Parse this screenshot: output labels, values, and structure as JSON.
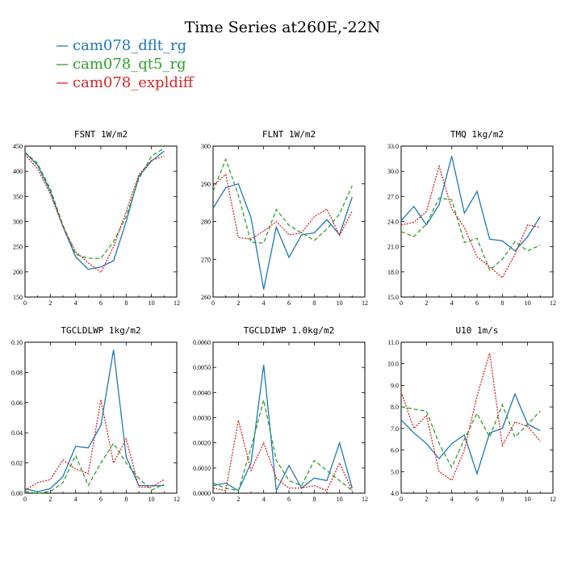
{
  "title": "Time Series at260E,-22N",
  "legend": [
    {
      "label": "cam078_dflt_rg",
      "color": "#1f77b4",
      "dash": "solid"
    },
    {
      "label": "cam078_qt5_rg",
      "color": "#2ca02c",
      "dash": "dashed"
    },
    {
      "label": "cam078_expldiff",
      "color": "#d62728",
      "dash": "dotted"
    }
  ],
  "chart_data": [
    {
      "type": "line",
      "title": "FSNT   1W/m2",
      "xlim": [
        0,
        12
      ],
      "xticks": [
        "0",
        "2",
        "4",
        "6",
        "8",
        "10",
        "12"
      ],
      "ylim": [
        150,
        450
      ],
      "yticks": [
        "150",
        "200",
        "250",
        "300",
        "350",
        "400",
        "450"
      ],
      "x": [
        0,
        1,
        2,
        3,
        4,
        5,
        6,
        7,
        8,
        9,
        10,
        11
      ],
      "series": [
        {
          "name": "cam078_dflt_rg",
          "values": [
            437,
            412,
            360,
            290,
            230,
            205,
            210,
            222,
            300,
            390,
            420,
            440
          ]
        },
        {
          "name": "cam078_qt5_rg",
          "values": [
            438,
            415,
            365,
            293,
            235,
            227,
            227,
            260,
            310,
            385,
            430,
            446
          ]
        },
        {
          "name": "cam078_expldiff",
          "values": [
            433,
            405,
            355,
            290,
            240,
            218,
            199,
            250,
            320,
            393,
            422,
            430
          ]
        }
      ]
    },
    {
      "type": "line",
      "title": "FLNT   1W/m2",
      "xlim": [
        0,
        12
      ],
      "xticks": [
        "0",
        "2",
        "4",
        "6",
        "8",
        "10",
        "12"
      ],
      "ylim": [
        260,
        300
      ],
      "yticks": [
        "260",
        "270",
        "280",
        "290",
        "300"
      ],
      "x": [
        0,
        1,
        2,
        3,
        4,
        5,
        6,
        7,
        8,
        9,
        10,
        11
      ],
      "series": [
        {
          "name": "cam078_dflt_rg",
          "values": [
            283.5,
            289,
            290,
            281,
            262,
            278.5,
            270.5,
            276.5,
            277,
            280.5,
            276.5,
            286.5
          ]
        },
        {
          "name": "cam078_qt5_rg",
          "values": [
            288,
            296.5,
            287,
            274.5,
            274.3,
            283.2,
            279,
            277,
            275,
            278,
            282,
            289.5
          ]
        },
        {
          "name": "cam078_expldiff",
          "values": [
            289.5,
            292.5,
            275.8,
            275.3,
            277.5,
            280,
            276.5,
            277,
            281.3,
            283.3,
            276.3,
            282.8
          ]
        }
      ]
    },
    {
      "type": "line",
      "title": "TMQ   1kg/m2",
      "xlim": [
        0,
        12
      ],
      "xticks": [
        "0",
        "2",
        "4",
        "6",
        "8",
        "10",
        "12"
      ],
      "ylim": [
        15.0,
        33.0
      ],
      "yticks": [
        "15.0",
        "18.0",
        "21.0",
        "24.0",
        "27.0",
        "30.0",
        "33.0"
      ],
      "x": [
        0,
        1,
        2,
        3,
        4,
        5,
        6,
        7,
        8,
        9,
        10,
        11
      ],
      "series": [
        {
          "name": "cam078_dflt_rg",
          "values": [
            24.1,
            25.8,
            23.6,
            26.0,
            31.8,
            25.0,
            27.6,
            21.9,
            21.7,
            20.5,
            22.2,
            24.6
          ]
        },
        {
          "name": "cam078_qt5_rg",
          "values": [
            22.8,
            22.2,
            23.7,
            26.8,
            26.6,
            21.5,
            22.0,
            18.2,
            19.5,
            21.6,
            20.5,
            21.2
          ]
        },
        {
          "name": "cam078_expldiff",
          "values": [
            23.6,
            23.9,
            25.2,
            30.6,
            25.5,
            23.3,
            19.8,
            18.6,
            17.3,
            20.1,
            23.6,
            23.3
          ]
        }
      ]
    },
    {
      "type": "line",
      "title": "TGCLDLWP   1kg/m2",
      "xlim": [
        0,
        12
      ],
      "xticks": [
        "0",
        "2",
        "4",
        "6",
        "8",
        "10",
        "12"
      ],
      "ylim": [
        0.0,
        0.1
      ],
      "yticks": [
        "0.00",
        "0.02",
        "0.04",
        "0.06",
        "0.08",
        "0.10"
      ],
      "x": [
        0,
        1,
        2,
        3,
        4,
        5,
        6,
        7,
        8,
        9,
        10,
        11
      ],
      "series": [
        {
          "name": "cam078_dflt_rg",
          "values": [
            0.003,
            0.001,
            0.003,
            0.011,
            0.031,
            0.03,
            0.045,
            0.095,
            0.024,
            0.005,
            0.005,
            0.005
          ]
        },
        {
          "name": "cam078_qt5_rg",
          "values": [
            0.001,
            0.0,
            0.001,
            0.007,
            0.025,
            0.005,
            0.02,
            0.033,
            0.02,
            0.01,
            0.002,
            0.006
          ]
        },
        {
          "name": "cam078_expldiff",
          "values": [
            0.002,
            0.007,
            0.009,
            0.022,
            0.016,
            0.013,
            0.062,
            0.02,
            0.036,
            0.004,
            0.004,
            0.009
          ]
        }
      ]
    },
    {
      "type": "line",
      "title": "TGCLDIWP   1.0kg/m2",
      "xlim": [
        0,
        12
      ],
      "xticks": [
        "0",
        "2",
        "4",
        "6",
        "8",
        "10",
        "12"
      ],
      "ylim": [
        0.0,
        0.006
      ],
      "yticks": [
        "0.0000",
        "0.0010",
        "0.0020",
        "0.0030",
        "0.0040",
        "0.0050",
        "0.0060"
      ],
      "x": [
        0,
        1,
        2,
        3,
        4,
        5,
        6,
        7,
        8,
        9,
        10,
        11
      ],
      "series": [
        {
          "name": "cam078_dflt_rg",
          "values": [
            0.0003,
            0.0004,
            0.0001,
            0.0012,
            0.0051,
            0.0001,
            0.0011,
            0.0002,
            0.0006,
            0.0005,
            0.002,
            0.0002
          ]
        },
        {
          "name": "cam078_qt5_rg",
          "values": [
            0.0004,
            0.0002,
            0.0001,
            0.0018,
            0.0037,
            0.0013,
            0.0005,
            0.0003,
            0.0013,
            0.0009,
            0.0005,
            0.0001
          ]
        },
        {
          "name": "cam078_expldiff",
          "values": [
            0.0002,
            0.0001,
            0.0029,
            0.0009,
            0.002,
            0.0006,
            0.0002,
            0.0002,
            0.0003,
            0.0001,
            0.0012,
            0.0001
          ]
        }
      ]
    },
    {
      "type": "line",
      "title": "U10   1m/s",
      "xlim": [
        0,
        12
      ],
      "xticks": [
        "0",
        "2",
        "4",
        "6",
        "8",
        "10",
        "12"
      ],
      "ylim": [
        4.0,
        11.0
      ],
      "yticks": [
        "4.0",
        "5.0",
        "6.0",
        "7.0",
        "8.0",
        "9.0",
        "10.0",
        "11.0"
      ],
      "x": [
        0,
        1,
        2,
        3,
        4,
        5,
        6,
        7,
        8,
        9,
        10,
        11
      ],
      "series": [
        {
          "name": "cam078_dflt_rg",
          "values": [
            7.4,
            6.8,
            6.3,
            5.6,
            6.3,
            6.7,
            4.9,
            6.8,
            7.0,
            8.6,
            7.2,
            6.9
          ]
        },
        {
          "name": "cam078_qt5_rg",
          "values": [
            8.0,
            7.9,
            7.8,
            6.3,
            5.2,
            6.5,
            7.7,
            6.6,
            8.1,
            6.6,
            7.2,
            7.8
          ]
        },
        {
          "name": "cam078_expldiff",
          "values": [
            8.7,
            7.0,
            7.6,
            5.0,
            4.6,
            6.0,
            8.5,
            10.5,
            6.2,
            7.3,
            7.1,
            6.4
          ]
        }
      ]
    }
  ]
}
